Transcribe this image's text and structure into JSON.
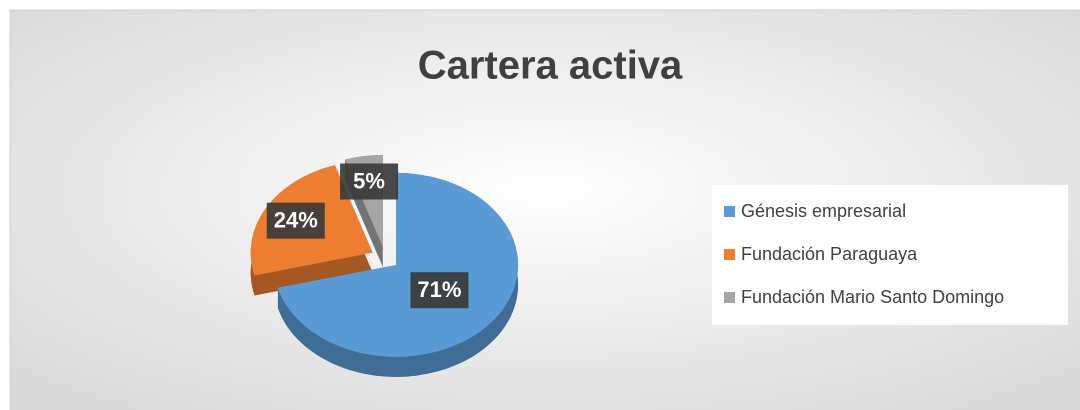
{
  "chart_data": {
    "type": "pie",
    "title": "Cartera activa",
    "categories": [
      "Génesis empresarial",
      "Fundación Paraguaya",
      "Fundación Mario Santo Domingo"
    ],
    "values": [
      71,
      24,
      5
    ],
    "value_labels": [
      "71%",
      "24%",
      "5%"
    ],
    "colors": [
      "#5b9bd5",
      "#ed7d31",
      "#a5a5a5"
    ],
    "legend": "right"
  }
}
